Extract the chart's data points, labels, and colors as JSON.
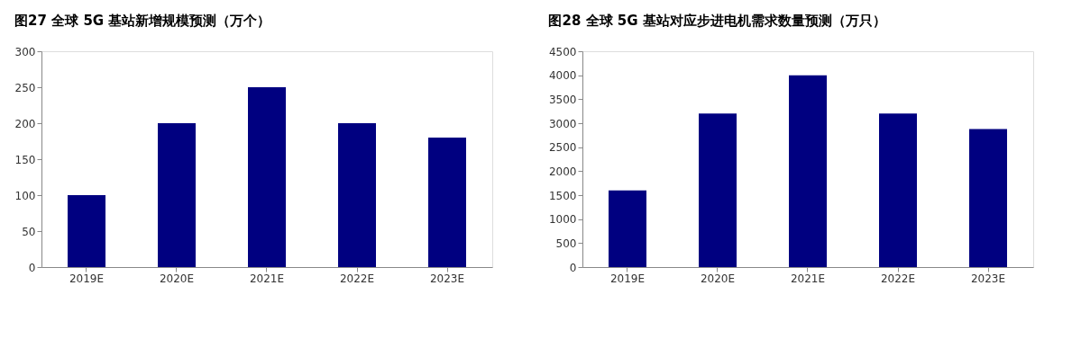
{
  "chart_data": [
    {
      "type": "bar",
      "title": "图27 全球 5G 基站新增规模预测（万个）",
      "categories": [
        "2019E",
        "2020E",
        "2021E",
        "2022E",
        "2023E"
      ],
      "values": [
        100,
        200,
        250,
        200,
        180
      ],
      "color": "#000080",
      "ylim": [
        0,
        300
      ],
      "yticks": [
        0,
        50,
        100,
        150,
        200,
        250,
        300
      ],
      "grid": false
    },
    {
      "type": "bar",
      "title": "图28 全球 5G 基站对应步进电机需求数量预测（万只）",
      "categories": [
        "2019E",
        "2020E",
        "2021E",
        "2022E",
        "2023E"
      ],
      "values": [
        1600,
        3200,
        4000,
        3200,
        2880
      ],
      "color": "#000080",
      "ylim": [
        0,
        4500
      ],
      "yticks": [
        0,
        500,
        1000,
        1500,
        2000,
        2500,
        3000,
        3500,
        4000,
        4500
      ],
      "grid": false
    }
  ]
}
